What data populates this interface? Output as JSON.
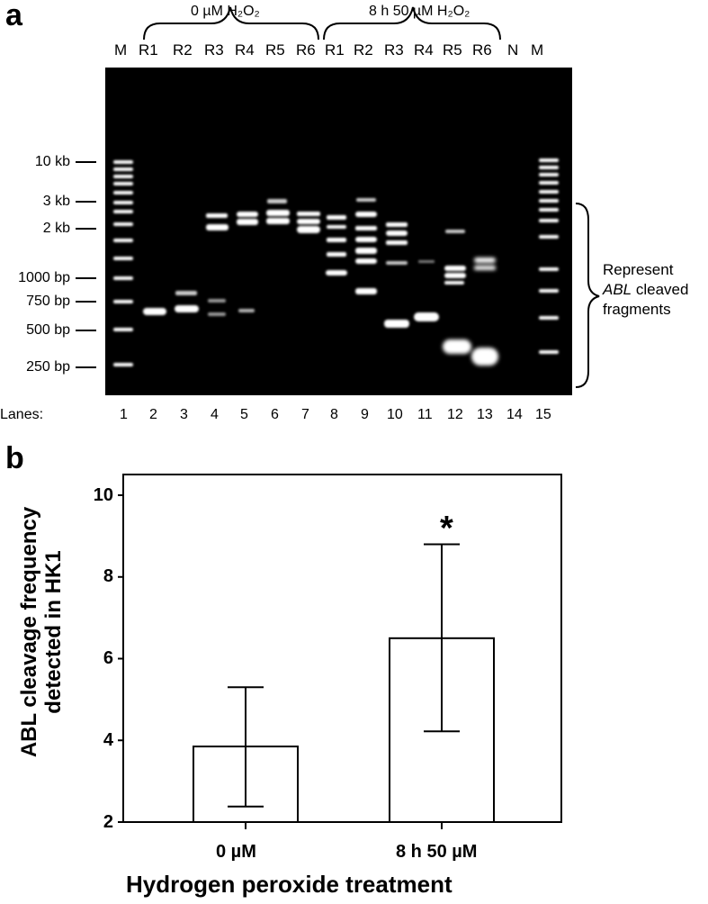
{
  "panel_a": {
    "letter": "a",
    "groups": [
      {
        "label": "0 µM H₂O₂"
      },
      {
        "label": "8 h 50 µM H₂O₂"
      }
    ],
    "lane_headers": [
      "M",
      "R1",
      "R2",
      "R3",
      "R4",
      "R5",
      "R6",
      "R1",
      "R2",
      "R3",
      "R4",
      "R5",
      "R6",
      "N",
      "M"
    ],
    "size_markers": [
      "10 kb",
      "3 kb",
      "2 kb",
      "1000 bp",
      "750 bp",
      "500 bp",
      "250 bp"
    ],
    "lanes_label": "Lanes:",
    "lane_numbers": [
      "1",
      "2",
      "3",
      "4",
      "5",
      "6",
      "7",
      "8",
      "9",
      "10",
      "11",
      "12",
      "13",
      "14",
      "15"
    ],
    "annotation": {
      "line1": "Represent",
      "italic": "ABL",
      "line2_rest": " cleaved",
      "line3": "fragments"
    }
  },
  "panel_b": {
    "letter": "b",
    "significance_marker": "*"
  },
  "chart_data": {
    "type": "bar",
    "categories": [
      "0 µM",
      "8 h 50 µM"
    ],
    "values": [
      3.85,
      6.5
    ],
    "error_low": [
      2.38,
      4.22
    ],
    "error_high": [
      5.3,
      8.8
    ],
    "xlabel": "Hydrogen peroxide treatment",
    "ylabel": "ABL cleavage frequency detected in HK1",
    "ylim": [
      2,
      10
    ],
    "yticks": [
      "2",
      "4",
      "6",
      "8",
      "10"
    ],
    "bar_color": "#ffffff",
    "grid": false
  }
}
